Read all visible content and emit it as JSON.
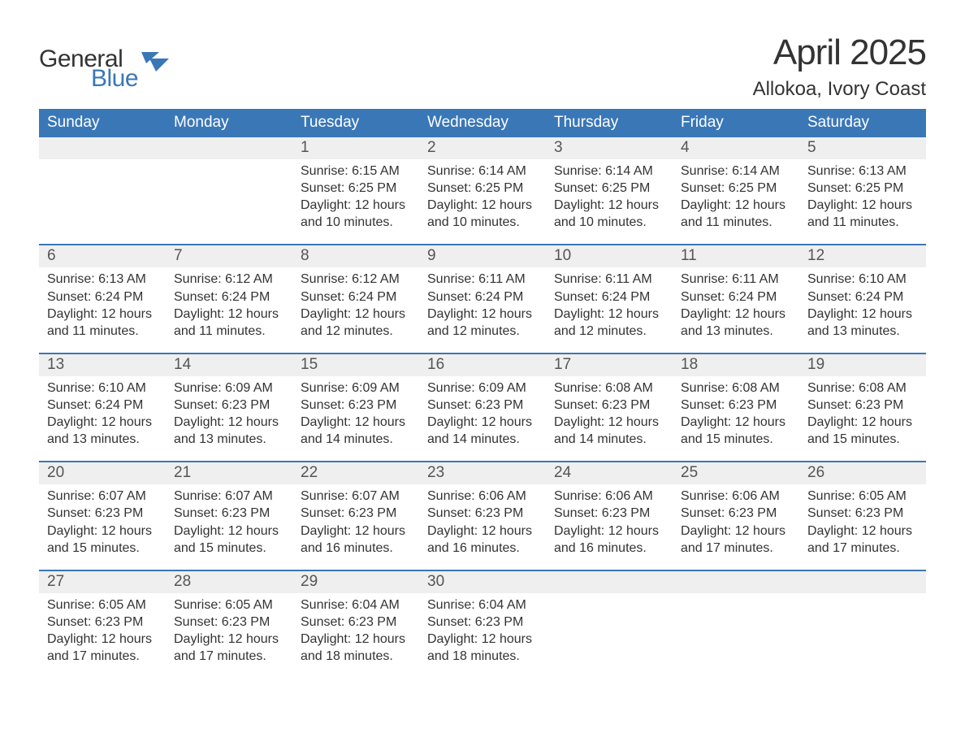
{
  "brand": {
    "word1": "General",
    "word2": "Blue",
    "text_color": "#333333",
    "accent_color": "#3a77b7"
  },
  "title": "April 2025",
  "location": "Allokoa, Ivory Coast",
  "style": {
    "header_bg": "#3a77b7",
    "header_fg": "#ffffff",
    "daynum_bg": "#efefef",
    "week_border": "#3a77b7",
    "body_bg": "#ffffff",
    "text_color": "#333333",
    "title_fontsize_pt": 33,
    "location_fontsize_pt": 18,
    "dow_fontsize_pt": 14,
    "daynum_fontsize_pt": 14,
    "body_fontsize_pt": 12
  },
  "days_of_week": [
    "Sunday",
    "Monday",
    "Tuesday",
    "Wednesday",
    "Thursday",
    "Friday",
    "Saturday"
  ],
  "weeks": [
    [
      {
        "n": "",
        "sunrise": "",
        "sunset": "",
        "daylight": ""
      },
      {
        "n": "",
        "sunrise": "",
        "sunset": "",
        "daylight": ""
      },
      {
        "n": "1",
        "sunrise": "Sunrise: 6:15 AM",
        "sunset": "Sunset: 6:25 PM",
        "daylight": "Daylight: 12 hours and 10 minutes."
      },
      {
        "n": "2",
        "sunrise": "Sunrise: 6:14 AM",
        "sunset": "Sunset: 6:25 PM",
        "daylight": "Daylight: 12 hours and 10 minutes."
      },
      {
        "n": "3",
        "sunrise": "Sunrise: 6:14 AM",
        "sunset": "Sunset: 6:25 PM",
        "daylight": "Daylight: 12 hours and 10 minutes."
      },
      {
        "n": "4",
        "sunrise": "Sunrise: 6:14 AM",
        "sunset": "Sunset: 6:25 PM",
        "daylight": "Daylight: 12 hours and 11 minutes."
      },
      {
        "n": "5",
        "sunrise": "Sunrise: 6:13 AM",
        "sunset": "Sunset: 6:25 PM",
        "daylight": "Daylight: 12 hours and 11 minutes."
      }
    ],
    [
      {
        "n": "6",
        "sunrise": "Sunrise: 6:13 AM",
        "sunset": "Sunset: 6:24 PM",
        "daylight": "Daylight: 12 hours and 11 minutes."
      },
      {
        "n": "7",
        "sunrise": "Sunrise: 6:12 AM",
        "sunset": "Sunset: 6:24 PM",
        "daylight": "Daylight: 12 hours and 11 minutes."
      },
      {
        "n": "8",
        "sunrise": "Sunrise: 6:12 AM",
        "sunset": "Sunset: 6:24 PM",
        "daylight": "Daylight: 12 hours and 12 minutes."
      },
      {
        "n": "9",
        "sunrise": "Sunrise: 6:11 AM",
        "sunset": "Sunset: 6:24 PM",
        "daylight": "Daylight: 12 hours and 12 minutes."
      },
      {
        "n": "10",
        "sunrise": "Sunrise: 6:11 AM",
        "sunset": "Sunset: 6:24 PM",
        "daylight": "Daylight: 12 hours and 12 minutes."
      },
      {
        "n": "11",
        "sunrise": "Sunrise: 6:11 AM",
        "sunset": "Sunset: 6:24 PM",
        "daylight": "Daylight: 12 hours and 13 minutes."
      },
      {
        "n": "12",
        "sunrise": "Sunrise: 6:10 AM",
        "sunset": "Sunset: 6:24 PM",
        "daylight": "Daylight: 12 hours and 13 minutes."
      }
    ],
    [
      {
        "n": "13",
        "sunrise": "Sunrise: 6:10 AM",
        "sunset": "Sunset: 6:24 PM",
        "daylight": "Daylight: 12 hours and 13 minutes."
      },
      {
        "n": "14",
        "sunrise": "Sunrise: 6:09 AM",
        "sunset": "Sunset: 6:23 PM",
        "daylight": "Daylight: 12 hours and 13 minutes."
      },
      {
        "n": "15",
        "sunrise": "Sunrise: 6:09 AM",
        "sunset": "Sunset: 6:23 PM",
        "daylight": "Daylight: 12 hours and 14 minutes."
      },
      {
        "n": "16",
        "sunrise": "Sunrise: 6:09 AM",
        "sunset": "Sunset: 6:23 PM",
        "daylight": "Daylight: 12 hours and 14 minutes."
      },
      {
        "n": "17",
        "sunrise": "Sunrise: 6:08 AM",
        "sunset": "Sunset: 6:23 PM",
        "daylight": "Daylight: 12 hours and 14 minutes."
      },
      {
        "n": "18",
        "sunrise": "Sunrise: 6:08 AM",
        "sunset": "Sunset: 6:23 PM",
        "daylight": "Daylight: 12 hours and 15 minutes."
      },
      {
        "n": "19",
        "sunrise": "Sunrise: 6:08 AM",
        "sunset": "Sunset: 6:23 PM",
        "daylight": "Daylight: 12 hours and 15 minutes."
      }
    ],
    [
      {
        "n": "20",
        "sunrise": "Sunrise: 6:07 AM",
        "sunset": "Sunset: 6:23 PM",
        "daylight": "Daylight: 12 hours and 15 minutes."
      },
      {
        "n": "21",
        "sunrise": "Sunrise: 6:07 AM",
        "sunset": "Sunset: 6:23 PM",
        "daylight": "Daylight: 12 hours and 15 minutes."
      },
      {
        "n": "22",
        "sunrise": "Sunrise: 6:07 AM",
        "sunset": "Sunset: 6:23 PM",
        "daylight": "Daylight: 12 hours and 16 minutes."
      },
      {
        "n": "23",
        "sunrise": "Sunrise: 6:06 AM",
        "sunset": "Sunset: 6:23 PM",
        "daylight": "Daylight: 12 hours and 16 minutes."
      },
      {
        "n": "24",
        "sunrise": "Sunrise: 6:06 AM",
        "sunset": "Sunset: 6:23 PM",
        "daylight": "Daylight: 12 hours and 16 minutes."
      },
      {
        "n": "25",
        "sunrise": "Sunrise: 6:06 AM",
        "sunset": "Sunset: 6:23 PM",
        "daylight": "Daylight: 12 hours and 17 minutes."
      },
      {
        "n": "26",
        "sunrise": "Sunrise: 6:05 AM",
        "sunset": "Sunset: 6:23 PM",
        "daylight": "Daylight: 12 hours and 17 minutes."
      }
    ],
    [
      {
        "n": "27",
        "sunrise": "Sunrise: 6:05 AM",
        "sunset": "Sunset: 6:23 PM",
        "daylight": "Daylight: 12 hours and 17 minutes."
      },
      {
        "n": "28",
        "sunrise": "Sunrise: 6:05 AM",
        "sunset": "Sunset: 6:23 PM",
        "daylight": "Daylight: 12 hours and 17 minutes."
      },
      {
        "n": "29",
        "sunrise": "Sunrise: 6:04 AM",
        "sunset": "Sunset: 6:23 PM",
        "daylight": "Daylight: 12 hours and 18 minutes."
      },
      {
        "n": "30",
        "sunrise": "Sunrise: 6:04 AM",
        "sunset": "Sunset: 6:23 PM",
        "daylight": "Daylight: 12 hours and 18 minutes."
      },
      {
        "n": "",
        "sunrise": "",
        "sunset": "",
        "daylight": ""
      },
      {
        "n": "",
        "sunrise": "",
        "sunset": "",
        "daylight": ""
      },
      {
        "n": "",
        "sunrise": "",
        "sunset": "",
        "daylight": ""
      }
    ]
  ]
}
